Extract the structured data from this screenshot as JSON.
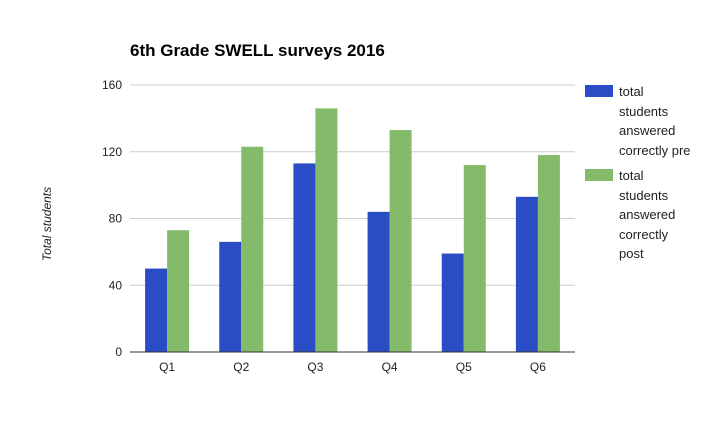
{
  "chart_data": {
    "type": "bar",
    "title": "6th Grade SWELL surveys 2016",
    "xlabel": "",
    "ylabel": "Total students",
    "categories": [
      "Q1",
      "Q2",
      "Q3",
      "Q4",
      "Q5",
      "Q6"
    ],
    "series": [
      {
        "name": "total students answered correctly pre",
        "color": "#2a4cc4",
        "values": [
          50,
          66,
          113,
          84,
          59,
          93
        ]
      },
      {
        "name": "total students answered correctly post",
        "color": "#84bb6b",
        "values": [
          73,
          123,
          146,
          133,
          112,
          118
        ]
      }
    ],
    "ylim": [
      0,
      160
    ],
    "yticks": [
      0,
      40,
      80,
      120,
      160
    ],
    "grid": true,
    "legend": "right"
  }
}
